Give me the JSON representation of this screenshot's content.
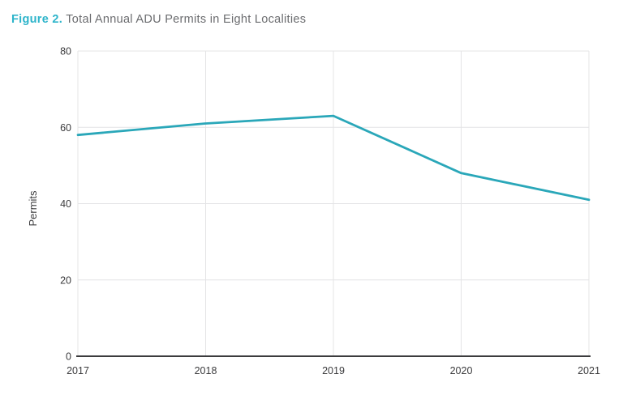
{
  "figure_caption": {
    "prefix": "Figure 2.",
    "text": "Total Annual ADU Permits in Eight Localities"
  },
  "chart_data": {
    "type": "line",
    "title": "Figure 2. Total Annual ADU Permits in Eight Localities",
    "categories": [
      "2017",
      "2018",
      "2019",
      "2020",
      "2021"
    ],
    "values": [
      58,
      61,
      63,
      48,
      41
    ],
    "xlabel": "",
    "ylabel": "Permits",
    "ylim": [
      0,
      80
    ],
    "yticks": [
      0,
      20,
      40,
      60,
      80
    ],
    "grid": true,
    "legend": "none",
    "colors": {
      "line": "#2AA7B9",
      "grid": "#E4E4E6",
      "axis": "#3B3B3D",
      "tick_text": "#3B3B3D",
      "title_accent": "#2DB4CA",
      "title_text": "#6B6C6F"
    }
  }
}
